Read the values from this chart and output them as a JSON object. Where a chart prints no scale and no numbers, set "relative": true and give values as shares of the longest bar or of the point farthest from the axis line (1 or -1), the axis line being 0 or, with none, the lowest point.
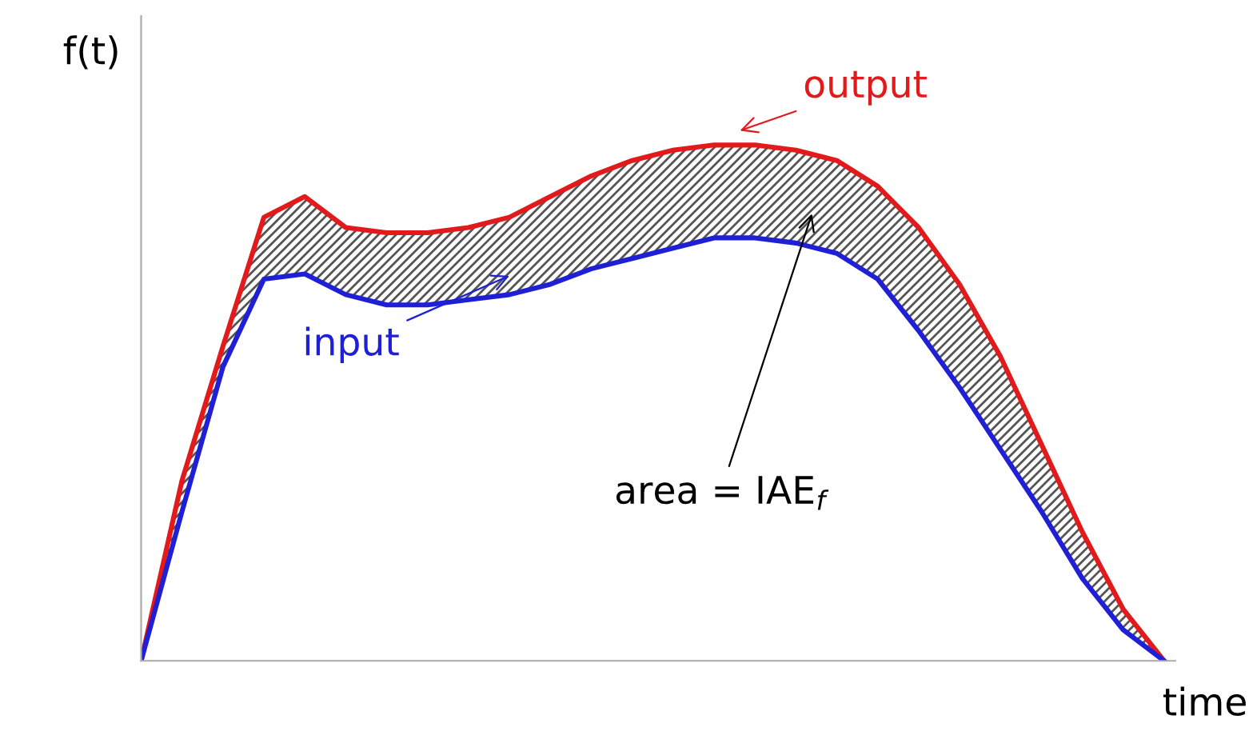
{
  "chart_data": {
    "type": "line",
    "relative": true,
    "ylabel": "f(t)",
    "xlabel": "time",
    "categories": [
      null,
      null,
      null,
      null,
      null,
      null,
      null,
      null,
      null,
      null,
      null,
      null,
      null,
      null,
      null,
      null,
      null,
      null,
      null,
      null,
      null,
      null,
      null,
      null,
      null,
      null
    ],
    "series": [
      {
        "name": "output",
        "color": "#e31a1c",
        "values": [
          0,
          0.35,
          0.61,
          0.86,
          0.9,
          0.84,
          0.83,
          0.83,
          0.84,
          0.86,
          0.9,
          0.94,
          0.97,
          0.99,
          1,
          1,
          0.99,
          0.97,
          0.92,
          0.84,
          0.73,
          0.59,
          0.42,
          0.25,
          0.1,
          0
        ],
        "lower": [
          0,
          0.29,
          0.57,
          0.74,
          0.75,
          0.71,
          0.69,
          0.69,
          0.7,
          0.71,
          0.73,
          0.76,
          0.78,
          0.8,
          0.82,
          0.82,
          0.81,
          0.79,
          0.74,
          0.64,
          0.53,
          0.41,
          0.29,
          0.16,
          0.06,
          0
        ],
        "upper": [
          0,
          0.35,
          0.61,
          0.86,
          0.9,
          0.84,
          0.83,
          0.83,
          0.84,
          0.86,
          0.9,
          0.94,
          0.97,
          0.99,
          1,
          1,
          0.99,
          0.97,
          0.92,
          0.84,
          0.73,
          0.59,
          0.42,
          0.25,
          0.1,
          0
        ]
      },
      {
        "name": "input",
        "color": "#1f1fd6",
        "values": [
          0,
          0.29,
          0.57,
          0.74,
          0.75,
          0.71,
          0.69,
          0.69,
          0.7,
          0.71,
          0.73,
          0.76,
          0.78,
          0.8,
          0.82,
          0.82,
          0.81,
          0.79,
          0.74,
          0.64,
          0.53,
          0.41,
          0.29,
          0.16,
          0.06,
          0
        ]
      }
    ],
    "annotations": [
      "area = IAE$_{f}$"
    ],
    "legend": false,
    "marker": "none",
    "line_style": "solid"
  }
}
